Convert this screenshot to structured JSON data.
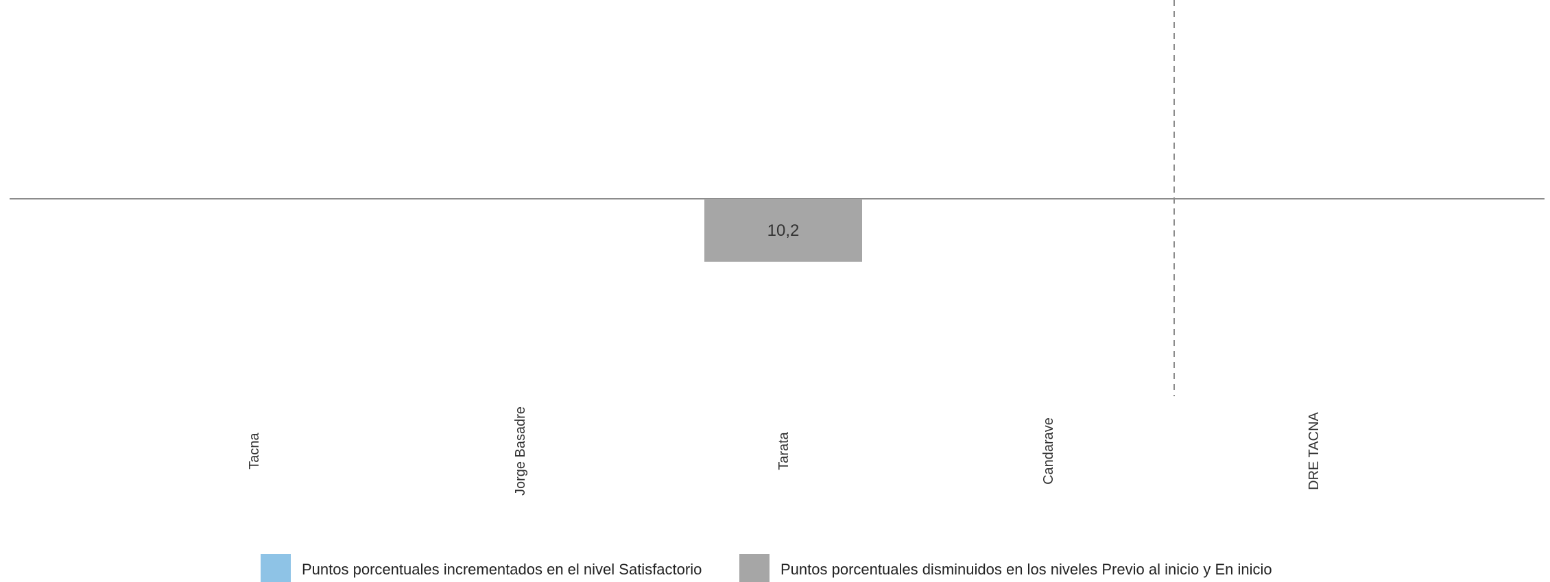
{
  "chart_data": {
    "type": "bar",
    "categories": [
      "Tacna",
      "Jorge Basadre",
      "Tarata",
      "Candarave",
      "DRE TACNA"
    ],
    "series": [
      {
        "name": "Puntos porcentuales incrementados en el nivel Satisfactorio",
        "color": "#8ec3e6",
        "values": [
          null,
          null,
          null,
          null,
          null
        ]
      },
      {
        "name": "Puntos porcentuales disminuidos en los niveles Previo al inicio y En inicio",
        "color": "#a6a6a6",
        "values": [
          null,
          null,
          -10.2,
          null,
          null
        ]
      }
    ],
    "data_labels": [
      "",
      "",
      "10,2",
      "",
      ""
    ],
    "ylim": [
      -32,
      32
    ],
    "separator_before_category": "DRE TACNA",
    "grid": false,
    "legend_position": "bottom"
  }
}
